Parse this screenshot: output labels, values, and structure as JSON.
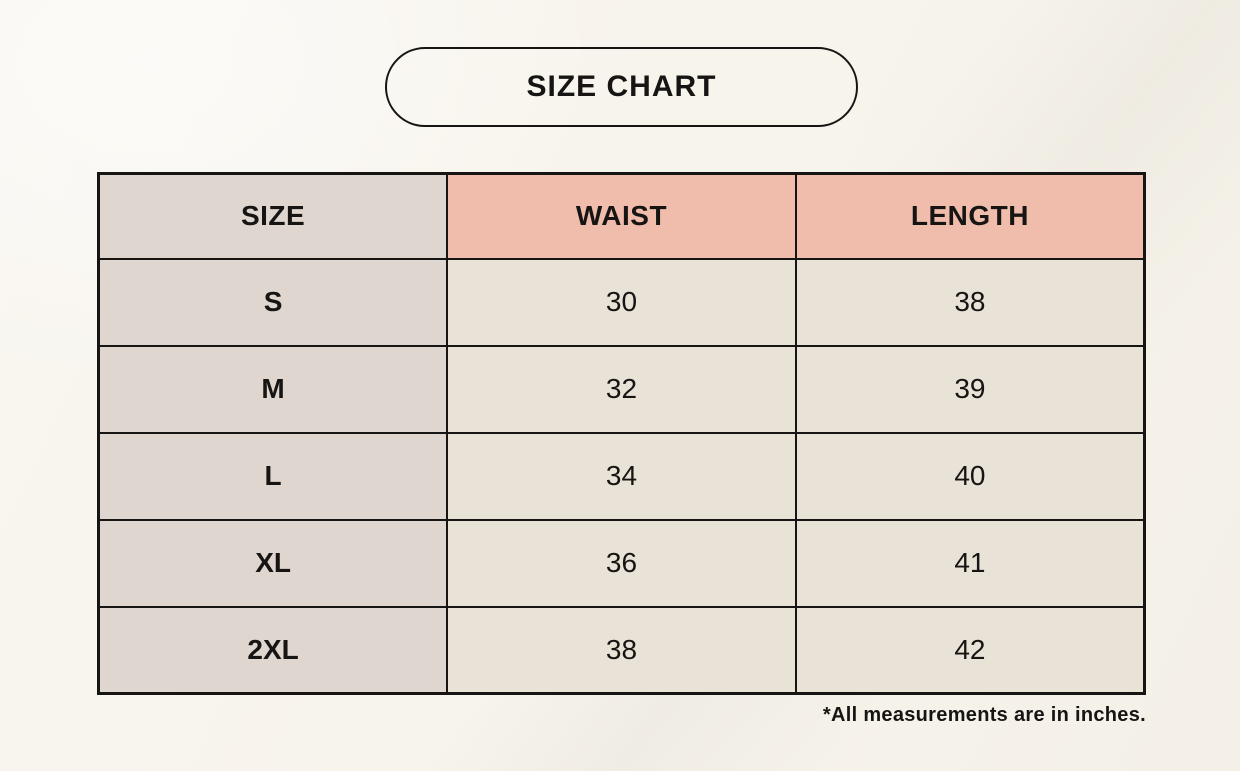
{
  "header": {
    "title": "SIZE CHART"
  },
  "table": {
    "columns": [
      {
        "label": "SIZE"
      },
      {
        "label": "WAIST"
      },
      {
        "label": "LENGTH"
      }
    ],
    "rows": [
      {
        "cells": [
          "S",
          "30",
          "38"
        ]
      },
      {
        "cells": [
          "M",
          "32",
          "39"
        ]
      },
      {
        "cells": [
          "L",
          "34",
          "40"
        ]
      },
      {
        "cells": [
          "XL",
          "36",
          "41"
        ]
      },
      {
        "cells": [
          "2XL",
          "38",
          "42"
        ]
      }
    ]
  },
  "footnote": {
    "text": "*All measurements are in inches."
  },
  "colors": {
    "page_background": "#f7f4ec",
    "table_border": "#171513",
    "size_column_background": "#ded6cf",
    "header_accent_background": "#f0bcab",
    "data_cell_background": "#e9e2d6",
    "text": "#171513"
  },
  "chart_data": {
    "type": "table",
    "title": "SIZE CHART",
    "columns": [
      "SIZE",
      "WAIST",
      "LENGTH"
    ],
    "rows": [
      [
        "S",
        30,
        38
      ],
      [
        "M",
        32,
        39
      ],
      [
        "L",
        34,
        40
      ],
      [
        "XL",
        36,
        41
      ],
      [
        "2XL",
        38,
        42
      ]
    ],
    "footnote": "*All measurements are in inches.",
    "units_note": "inches"
  }
}
